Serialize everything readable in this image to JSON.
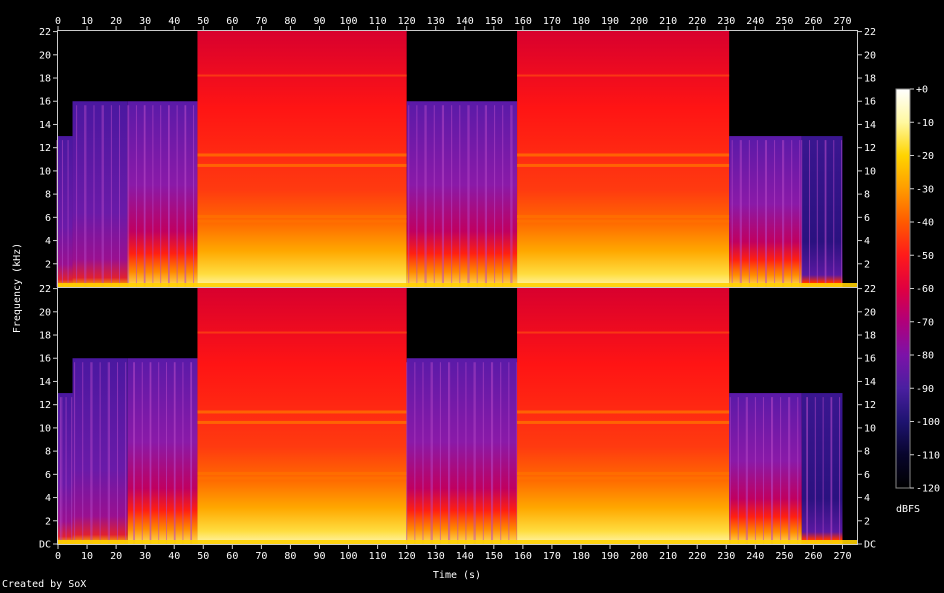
{
  "chart_data": {
    "type": "heatmap",
    "title": "",
    "xlabel": "Time (s)",
    "ylabel": "Frequency (kHz)",
    "x_ticks": [
      "0",
      "10",
      "20",
      "30",
      "40",
      "50",
      "60",
      "70",
      "80",
      "90",
      "100",
      "110",
      "120",
      "130",
      "140",
      "150",
      "160",
      "170",
      "180",
      "190",
      "200",
      "210",
      "220",
      "230",
      "240",
      "250",
      "260",
      "270"
    ],
    "y_ticks_top": [
      "22",
      "20",
      "18",
      "16",
      "14",
      "12",
      "10",
      "8",
      "6",
      "4",
      "2"
    ],
    "y_ticks_bottom": [
      "22",
      "20",
      "18",
      "16",
      "14",
      "12",
      "10",
      "8",
      "6",
      "4",
      "2",
      "DC"
    ],
    "xlim": [
      0,
      275
    ],
    "ylim_khz": [
      0,
      22.05
    ],
    "channels": 2,
    "colorbar": {
      "label": "dBFS",
      "ticks": [
        "+0",
        "-10",
        "-20",
        "-30",
        "-40",
        "-50",
        "-60",
        "-70",
        "-80",
        "-90",
        "-100",
        "-110",
        "-120"
      ],
      "colors": [
        "#ffffff",
        "#fff8a0",
        "#ffd400",
        "#ff9c00",
        "#ff5a00",
        "#ff1a1a",
        "#e00040",
        "#b0007a",
        "#7c12a8",
        "#4a1fa0",
        "#1e1370",
        "#08052c",
        "#000000"
      ]
    },
    "segments": [
      {
        "start": 0,
        "end": 5,
        "cutoff_khz": 13,
        "level": "quiet"
      },
      {
        "start": 5,
        "end": 24,
        "cutoff_khz": 16,
        "level": "quiet"
      },
      {
        "start": 24,
        "end": 48,
        "cutoff_khz": 16,
        "level": "medium"
      },
      {
        "start": 48,
        "end": 120,
        "cutoff_khz": 22.05,
        "level": "loud"
      },
      {
        "start": 120,
        "end": 158,
        "cutoff_khz": 16,
        "level": "medium"
      },
      {
        "start": 158,
        "end": 231,
        "cutoff_khz": 22.05,
        "level": "loud"
      },
      {
        "start": 231,
        "end": 256,
        "cutoff_khz": 13,
        "level": "medium"
      },
      {
        "start": 256,
        "end": 270,
        "cutoff_khz": 13,
        "level": "fade"
      }
    ]
  },
  "footer": {
    "credit": "Created by SoX"
  }
}
